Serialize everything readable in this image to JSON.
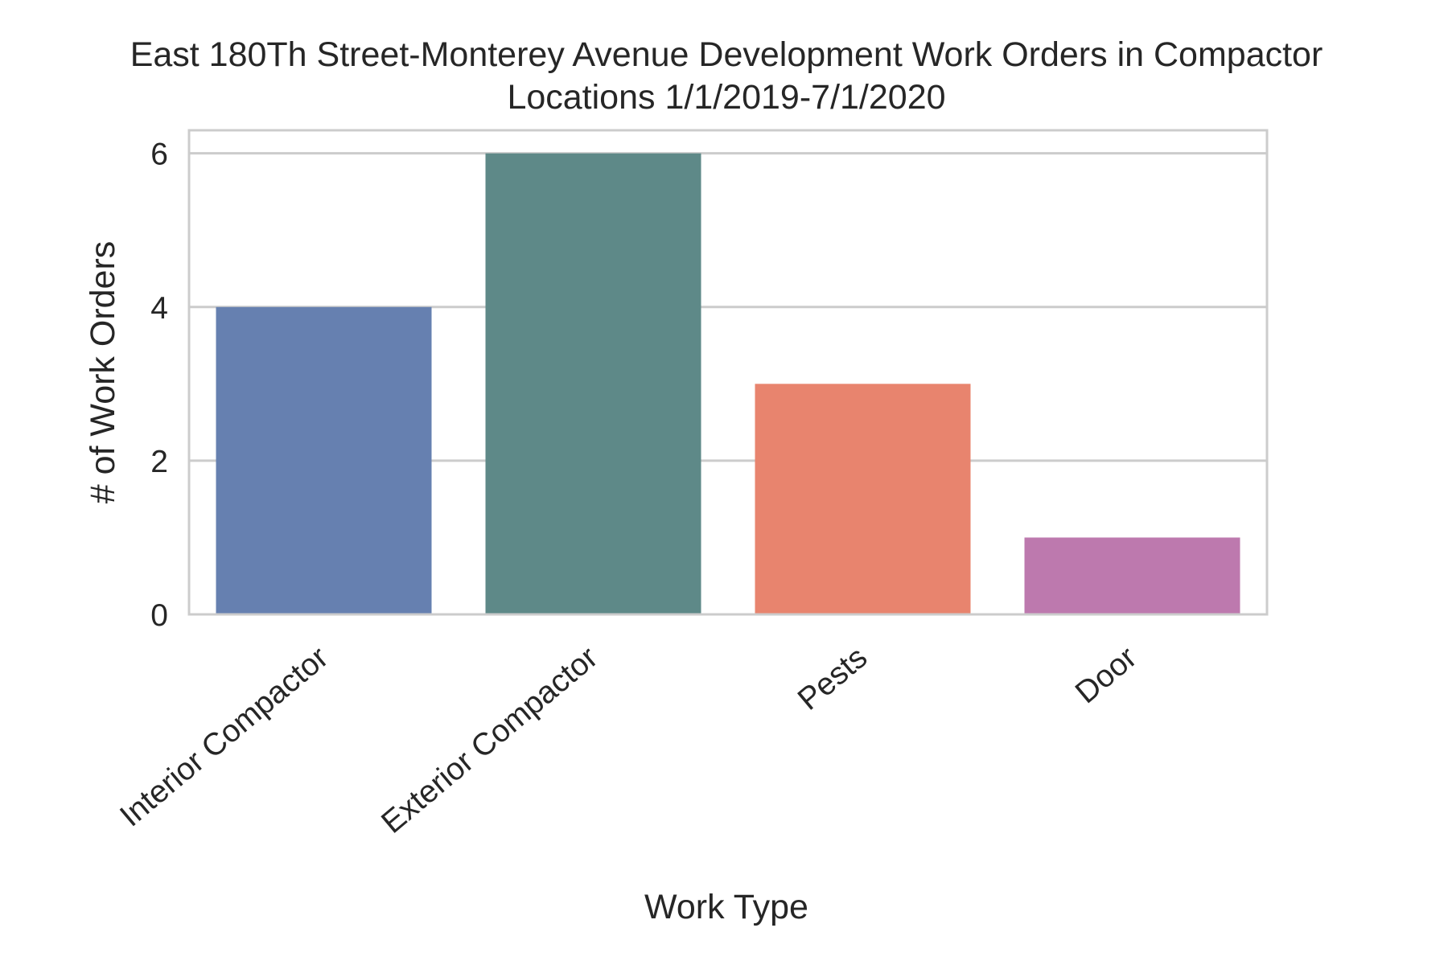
{
  "chart_data": {
    "type": "bar",
    "title": [
      "East 180Th Street-Monterey Avenue Development Work Orders in Compactor",
      "Locations 1/1/2019-7/1/2020"
    ],
    "xlabel": "Work Type",
    "ylabel": "# of Work Orders",
    "categories": [
      "Interior Compactor",
      "Exterior Compactor",
      "Pests",
      "Door"
    ],
    "values": [
      4,
      6,
      3,
      1
    ],
    "colors": [
      "#6680b0",
      "#5e8988",
      "#e8846e",
      "#bd79ae"
    ],
    "ylim": [
      0,
      6.3
    ],
    "yticks": [
      "0",
      "2",
      "4",
      "6"
    ],
    "grid": true,
    "gridColor": "#cccccc",
    "legend": "none"
  }
}
